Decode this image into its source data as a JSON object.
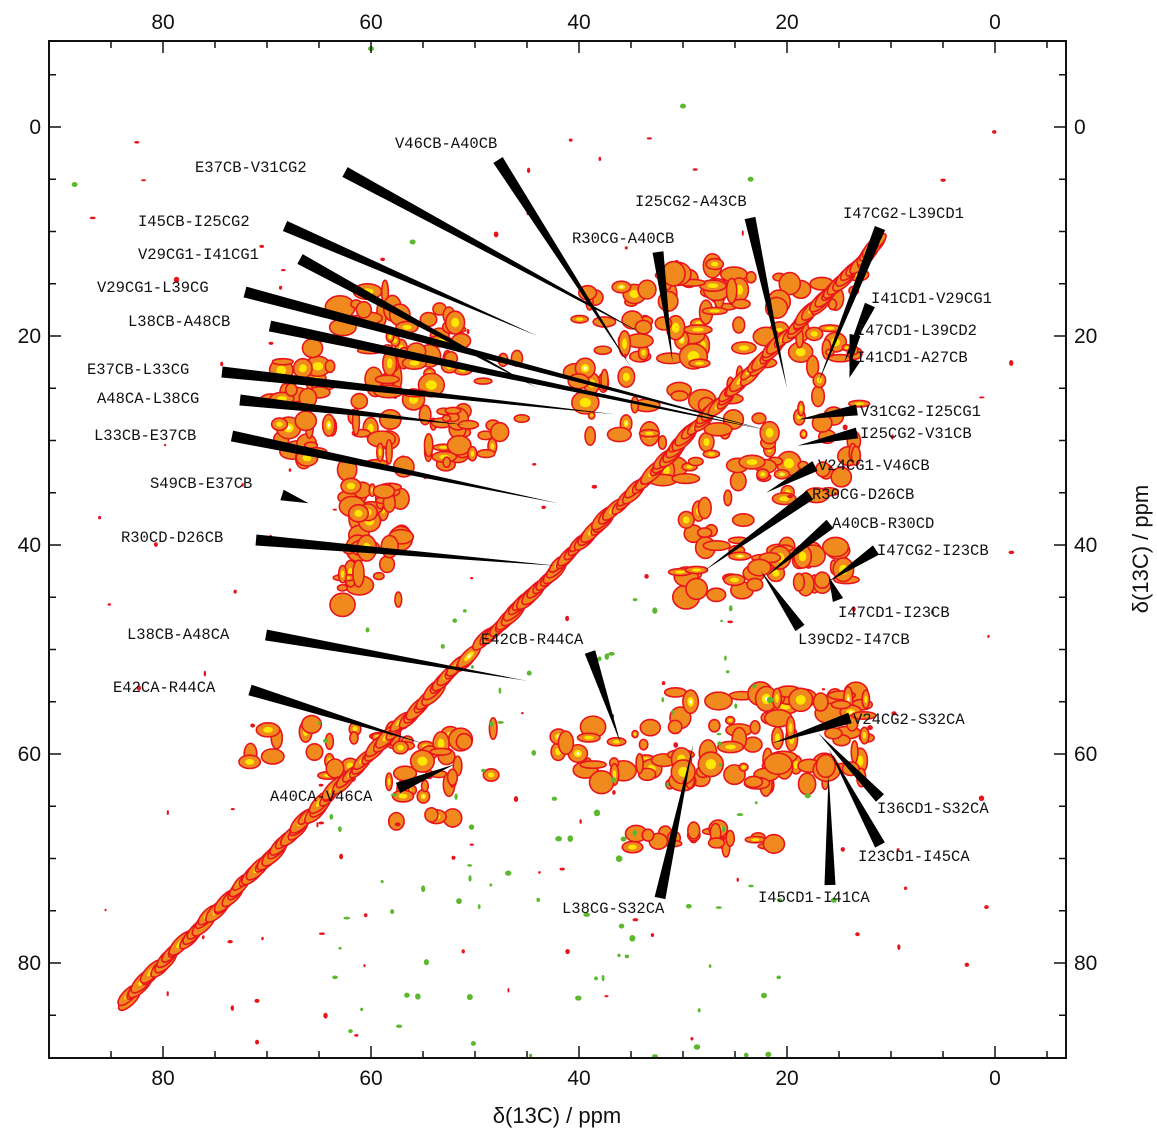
{
  "chart_data": {
    "type": "contour",
    "xlabel": "δ(13C) / ppm",
    "ylabel": "δ(13C) / ppm",
    "xlim": [
      90,
      -8.5
    ],
    "ylim": [
      -9,
      89.5
    ],
    "x_ticks": [
      80,
      60,
      40,
      20,
      0
    ],
    "y_ticks": [
      0,
      20,
      40,
      60,
      80
    ],
    "axis_reversed": true,
    "colors": {
      "positive_contour_outer": "#e8141c",
      "positive_contour_mid": "#f08a1e",
      "positive_contour_inner": "#ffe600",
      "positive_contour_peak": "#ffffff",
      "negative_contour": "#5cb82e",
      "annotation_line": "#000000"
    },
    "annotations": [
      {
        "label": "V46CB-A40CB",
        "peak": [
          35,
          23
        ]
      },
      {
        "label": "E37CB-V31CG2",
        "peak": [
          33.5,
          20
        ]
      },
      {
        "label": "I45CB-I25CG2",
        "peak": [
          44,
          20
        ]
      },
      {
        "label": "V29CG1-I41CG1",
        "peak": [
          44,
          25
        ]
      },
      {
        "label": "V29CG1-L39CG",
        "peak": [
          22,
          29
        ]
      },
      {
        "label": "L38CB-A48CB",
        "peak": [
          22,
          29
        ]
      },
      {
        "label": "E37CB-L33CG",
        "peak": [
          36.5,
          27.5
        ]
      },
      {
        "label": "A48CA-L38CG",
        "peak": [
          51,
          28.5
        ]
      },
      {
        "label": "L33CB-E37CB",
        "peak": [
          42,
          36
        ]
      },
      {
        "label": "S49CB-E37CB",
        "peak": [
          66,
          36
        ]
      },
      {
        "label": "R30CD-D26CB",
        "peak": [
          42,
          42
        ]
      },
      {
        "label": "I25CG2-A43CB",
        "peak": [
          20,
          25
        ]
      },
      {
        "label": "R30CG-A40CB",
        "peak": [
          31,
          22.5
        ]
      },
      {
        "label": "I47CG2-L39CD1",
        "peak": [
          17,
          24.5
        ]
      },
      {
        "label": "I41CD1-V29CG1",
        "peak": [
          14.5,
          22.5
        ]
      },
      {
        "label": "I47CD1-L39CD2",
        "peak": [
          14,
          23
        ]
      },
      {
        "label": "I41CD1-A27CB",
        "peak": [
          14,
          24
        ]
      },
      {
        "label": "V31CG2-I25CG1",
        "peak": [
          19,
          28
        ]
      },
      {
        "label": "I25CG2-V31CB",
        "peak": [
          19,
          30.5
        ]
      },
      {
        "label": "V24CG1-V46CB",
        "peak": [
          22,
          35
        ]
      },
      {
        "label": "R30CG-D26CB",
        "peak": [
          28,
          42.5
        ]
      },
      {
        "label": "A40CB-R30CD",
        "peak": [
          22,
          43
        ]
      },
      {
        "label": "I47CG2-I23CB",
        "peak": [
          16,
          43.5
        ]
      },
      {
        "label": "I47CD1-I23CB",
        "peak": [
          16,
          43
        ]
      },
      {
        "label": "L39CD2-I47CB",
        "peak": [
          22.5,
          42.5
        ]
      },
      {
        "label": "L38CB-A48CA",
        "peak": [
          45,
          53
        ]
      },
      {
        "label": "E42CB-R44CA",
        "peak": [
          36,
          59
        ]
      },
      {
        "label": "E42CA-R44CA",
        "peak": [
          55,
          59
        ]
      },
      {
        "label": "A40CA-V46CA",
        "peak": [
          52,
          61
        ]
      },
      {
        "label": "V24CG2-S32CA",
        "peak": [
          21.5,
          59
        ]
      },
      {
        "label": "I36CD1-S32CA",
        "peak": [
          17,
          58
        ]
      },
      {
        "label": "I23CD1-I45CA",
        "peak": [
          16,
          59.5
        ]
      },
      {
        "label": "I45CD1-I41CA",
        "peak": [
          16,
          62
        ]
      },
      {
        "label": "L38CG-S32CA",
        "peak": [
          29,
          59
        ]
      }
    ]
  }
}
